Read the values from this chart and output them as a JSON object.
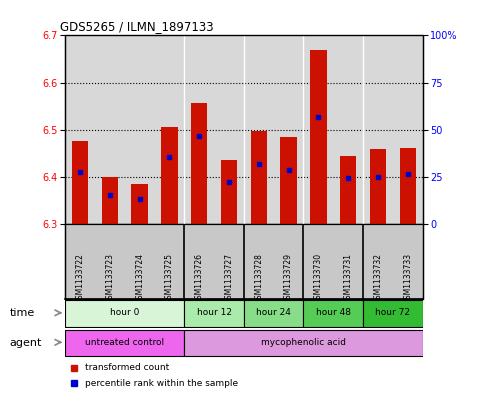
{
  "title": "GDS5265 / ILMN_1897133",
  "samples": [
    "GSM1133722",
    "GSM1133723",
    "GSM1133724",
    "GSM1133725",
    "GSM1133726",
    "GSM1133727",
    "GSM1133728",
    "GSM1133729",
    "GSM1133730",
    "GSM1133731",
    "GSM1133732",
    "GSM1133733"
  ],
  "bar_tops": [
    6.475,
    6.4,
    6.385,
    6.505,
    6.557,
    6.435,
    6.497,
    6.485,
    6.67,
    6.445,
    6.458,
    6.462
  ],
  "bar_bottoms": [
    6.3,
    6.3,
    6.3,
    6.3,
    6.3,
    6.3,
    6.3,
    6.3,
    6.3,
    6.3,
    6.3,
    6.3
  ],
  "percentile_vals": [
    6.41,
    6.362,
    6.353,
    6.443,
    6.487,
    6.39,
    6.428,
    6.415,
    6.527,
    6.398,
    6.4,
    6.405
  ],
  "bar_color": "#cc1100",
  "percentile_color": "#0000cc",
  "ylim_left": [
    6.3,
    6.7
  ],
  "ylim_right": [
    0,
    100
  ],
  "yticks_left": [
    6.3,
    6.4,
    6.5,
    6.6,
    6.7
  ],
  "yticks_right": [
    0,
    25,
    50,
    75,
    100
  ],
  "ytick_labels_right": [
    "0",
    "25",
    "50",
    "75",
    "100%"
  ],
  "grid_values": [
    6.4,
    6.5,
    6.6
  ],
  "time_groups": [
    {
      "label": "hour 0",
      "start": 0,
      "end": 4,
      "color": "#d8f5d8"
    },
    {
      "label": "hour 12",
      "start": 4,
      "end": 6,
      "color": "#aaeaaa"
    },
    {
      "label": "hour 24",
      "start": 6,
      "end": 8,
      "color": "#88dd88"
    },
    {
      "label": "hour 48",
      "start": 8,
      "end": 10,
      "color": "#55cc55"
    },
    {
      "label": "hour 72",
      "start": 10,
      "end": 12,
      "color": "#33bb33"
    }
  ],
  "agent_groups": [
    {
      "label": "untreated control",
      "start": 0,
      "end": 4,
      "color": "#ee66ee"
    },
    {
      "label": "mycophenolic acid",
      "start": 4,
      "end": 12,
      "color": "#dd99dd"
    }
  ],
  "legend_items": [
    {
      "label": "transformed count",
      "color": "#cc1100",
      "marker": "s"
    },
    {
      "label": "percentile rank within the sample",
      "color": "#0000cc",
      "marker": "s"
    }
  ],
  "bar_width": 0.55,
  "background_color": "#ffffff",
  "plot_bg_color": "#d8d8d8",
  "sample_bg_color": "#c8c8c8"
}
